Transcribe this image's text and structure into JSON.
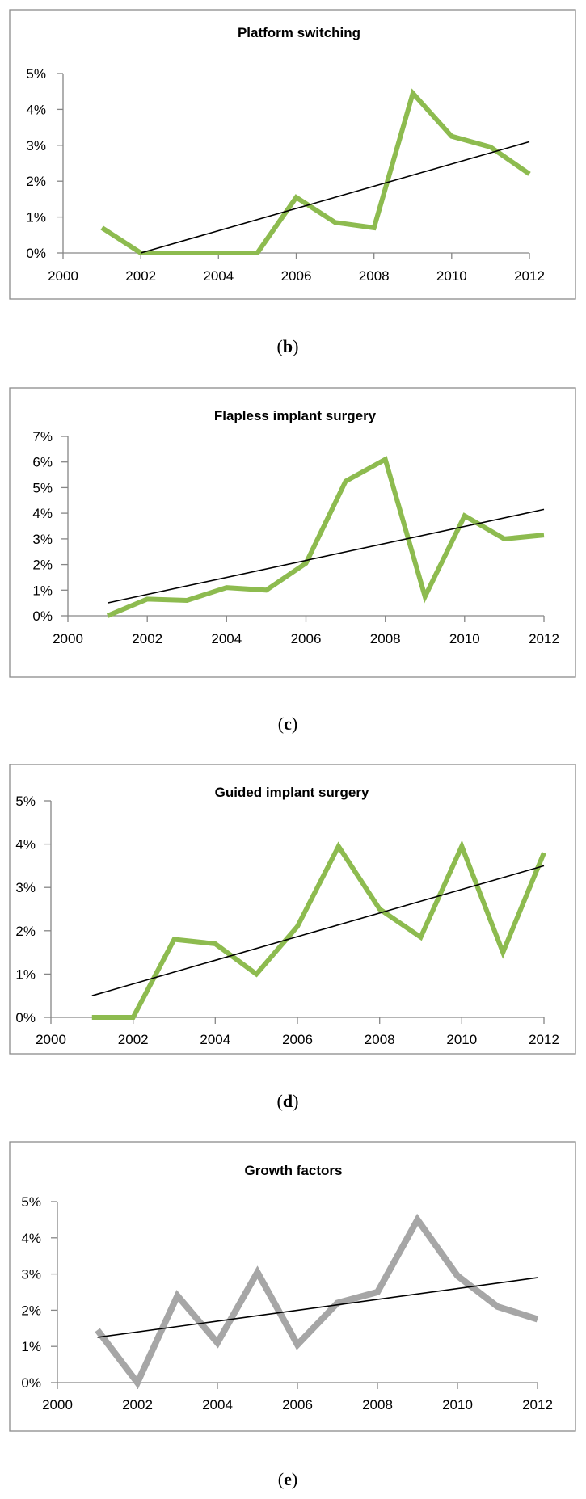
{
  "chart_data": [
    {
      "type": "line",
      "title": "Platform switching",
      "caption_letter": "b",
      "color": "#8dbb4f",
      "x": [
        2001,
        2002,
        2003,
        2004,
        2005,
        2006,
        2007,
        2008,
        2009,
        2010,
        2011,
        2012
      ],
      "values": [
        0.7,
        0.0,
        0.0,
        0.0,
        0.0,
        1.55,
        0.85,
        0.7,
        4.45,
        3.25,
        2.95,
        2.2
      ],
      "trend_start": [
        2002,
        0.0
      ],
      "trend_end": [
        2012,
        3.1
      ],
      "xlim": [
        2000,
        2012
      ],
      "ylim": [
        0,
        5
      ],
      "x_ticks": [
        "2000",
        "2002",
        "2004",
        "2006",
        "2008",
        "2010",
        "2012"
      ],
      "y_ticks": [
        "0%",
        "1%",
        "2%",
        "3%",
        "4%",
        "5%"
      ]
    },
    {
      "type": "line",
      "title": "Flapless implant surgery",
      "caption_letter": "c",
      "color": "#8dbb4f",
      "x": [
        2001,
        2002,
        2003,
        2004,
        2005,
        2006,
        2007,
        2008,
        2009,
        2010,
        2011,
        2012
      ],
      "values": [
        0.0,
        0.65,
        0.6,
        1.1,
        1.0,
        2.05,
        5.25,
        6.1,
        0.75,
        3.9,
        3.0,
        3.15
      ],
      "trend_start": [
        2001,
        0.5
      ],
      "trend_end": [
        2012,
        4.15
      ],
      "xlim": [
        2000,
        2012
      ],
      "ylim": [
        0,
        7
      ],
      "x_ticks": [
        "2000",
        "2002",
        "2004",
        "2006",
        "2008",
        "2010",
        "2012"
      ],
      "y_ticks": [
        "0%",
        "1%",
        "2%",
        "3%",
        "4%",
        "5%",
        "6%",
        "7%"
      ]
    },
    {
      "type": "line",
      "title": "Guided implant surgery",
      "caption_letter": "d",
      "color": "#8dbb4f",
      "x": [
        2001,
        2002,
        2003,
        2004,
        2005,
        2006,
        2007,
        2008,
        2009,
        2010,
        2011,
        2012
      ],
      "values": [
        0.0,
        0.0,
        1.8,
        1.7,
        1.0,
        2.1,
        3.95,
        2.5,
        1.85,
        3.95,
        1.5,
        3.8
      ],
      "trend_start": [
        2001,
        0.5
      ],
      "trend_end": [
        2012,
        3.5
      ],
      "xlim": [
        2000,
        2012
      ],
      "ylim": [
        0,
        5
      ],
      "x_ticks": [
        "2000",
        "2002",
        "2004",
        "2006",
        "2008",
        "2010",
        "2012"
      ],
      "y_ticks": [
        "0%",
        "1%",
        "2%",
        "3%",
        "4%",
        "5%"
      ]
    },
    {
      "type": "line",
      "title": "Growth factors",
      "caption_letter": "e",
      "color": "#a6a6a6",
      "x": [
        2001,
        2002,
        2003,
        2004,
        2005,
        2006,
        2007,
        2008,
        2009,
        2010,
        2011,
        2012
      ],
      "values": [
        1.45,
        0.0,
        2.4,
        1.1,
        3.05,
        1.05,
        2.2,
        2.5,
        4.5,
        2.95,
        2.1,
        1.75
      ],
      "trend_start": [
        2001,
        1.25
      ],
      "trend_end": [
        2012,
        2.9
      ],
      "xlim": [
        2000,
        2012
      ],
      "ylim": [
        0,
        5
      ],
      "x_ticks": [
        "2000",
        "2002",
        "2004",
        "2006",
        "2008",
        "2010",
        "2012"
      ],
      "y_ticks": [
        "0%",
        "1%",
        "2%",
        "3%",
        "4%",
        "5%"
      ]
    }
  ]
}
